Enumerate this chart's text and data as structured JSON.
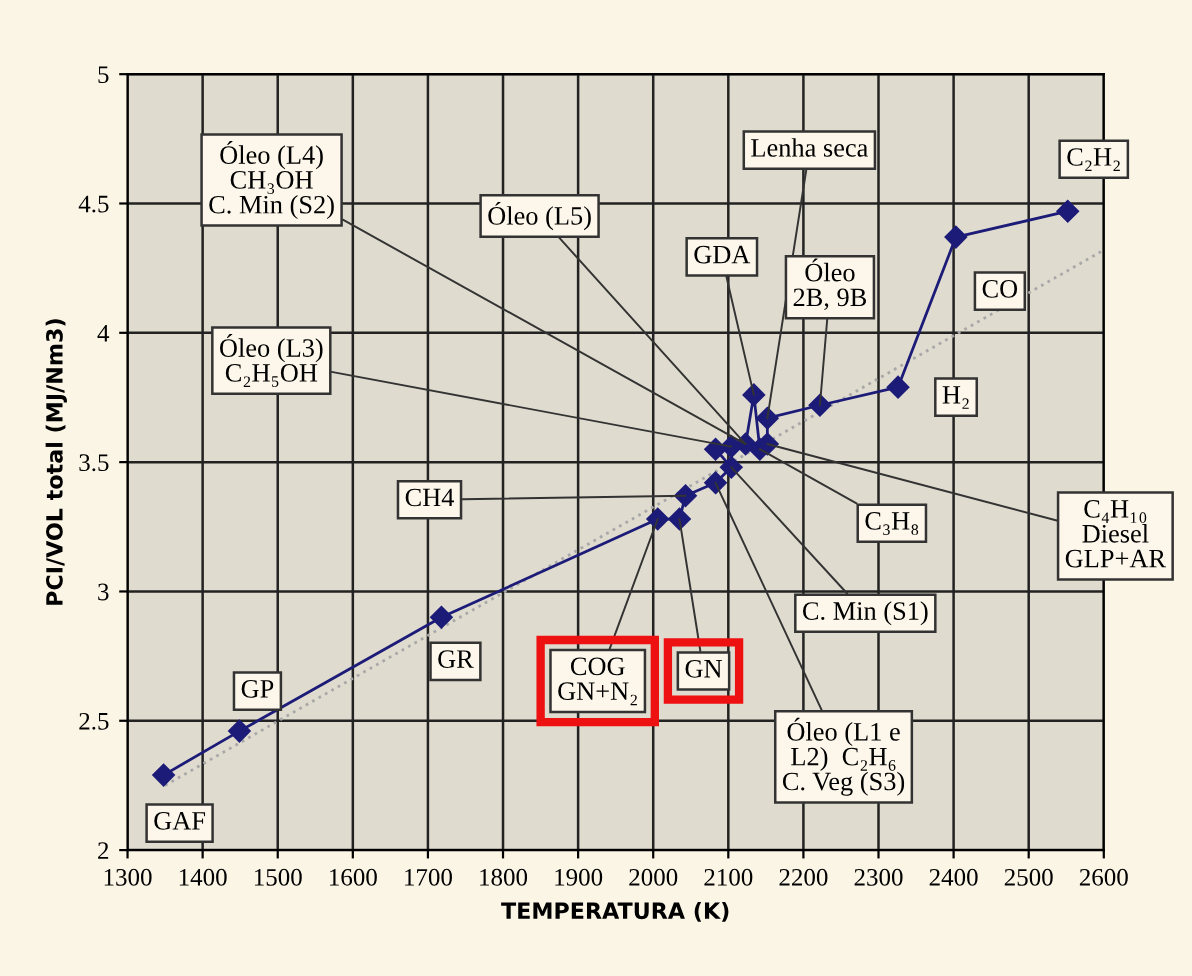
{
  "chart_data": {
    "type": "line",
    "xlabel": "TEMPERATURA (K)",
    "ylabel": "PCI/VOL total (MJ/Nm3)",
    "xlim": [
      1300,
      2600
    ],
    "xticks": [
      1300,
      1400,
      1500,
      1600,
      1700,
      1800,
      1900,
      2000,
      2100,
      2200,
      2300,
      2400,
      2500,
      2600
    ],
    "ylim": [
      2,
      5
    ],
    "yticks": [
      2,
      2.5,
      3,
      3.5,
      4,
      4.5,
      5
    ],
    "grid": true,
    "legend": false,
    "series": [
      {
        "color": "#1c1c78",
        "marker": "diamond",
        "line_style": "solid",
        "x": [
          1348,
          1449,
          1718,
          2006,
          2035,
          2043,
          2083,
          2104,
          2083,
          2104,
          2123,
          2134,
          2142,
          2152,
          2152,
          2222,
          2326,
          2403,
          2552
        ],
        "values": [
          2.29,
          2.46,
          2.9,
          3.28,
          3.28,
          3.37,
          3.42,
          3.48,
          3.55,
          3.56,
          3.57,
          3.76,
          3.55,
          3.57,
          3.67,
          3.72,
          3.79,
          4.37,
          4.47
        ]
      },
      {
        "color": "#a8a8a8",
        "marker": "none",
        "line_style": "dotted",
        "x": [
          1350,
          2600
        ],
        "values": [
          2.25,
          4.32
        ]
      }
    ],
    "annotations": [
      {
        "text": "Óleo (L4)\nCH₃OH\nC. Min (S2)",
        "x": 2123,
        "y": 3.57
      },
      {
        "text": "Óleo (L5)",
        "x": 2123,
        "y": 3.57
      },
      {
        "text": "Óleo (L3)\nC₂H₅OH",
        "x": 2104,
        "y": 3.56
      },
      {
        "text": "CH4",
        "x": 2043,
        "y": 3.37
      },
      {
        "text": "Lenha seca",
        "x": 2152,
        "y": 3.67
      },
      {
        "text": "GDA",
        "x": 2134,
        "y": 3.76
      },
      {
        "text": "Óleo\n2B, 9B",
        "x": 2222,
        "y": 3.72
      },
      {
        "text": "C₂H₂",
        "x": 2552,
        "y": 4.47
      },
      {
        "text": "CO",
        "x": 2403,
        "y": 4.37
      },
      {
        "text": "H₂",
        "x": 2326,
        "y": 3.79
      },
      {
        "text": "C₄H₁₀\nDiesel\nGLP+AR",
        "x": 2152,
        "y": 3.57
      },
      {
        "text": "C₃H₈",
        "x": 2142,
        "y": 3.55
      },
      {
        "text": "C. Min (S1)",
        "x": 2104,
        "y": 3.48
      },
      {
        "text": "Óleo (L1 e\nL2)  C₂H₆\nC. Veg (S3)",
        "x": 2083,
        "y": 3.42
      },
      {
        "text": "GN",
        "x": 2035,
        "y": 3.28
      },
      {
        "text": "COG\nGN+N₂",
        "x": 2006,
        "y": 3.28
      },
      {
        "text": "GR",
        "x": 1718,
        "y": 2.9
      },
      {
        "text": "GP",
        "x": 1449,
        "y": 2.46
      },
      {
        "text": "GAF",
        "x": 1348,
        "y": 2.29
      }
    ]
  }
}
